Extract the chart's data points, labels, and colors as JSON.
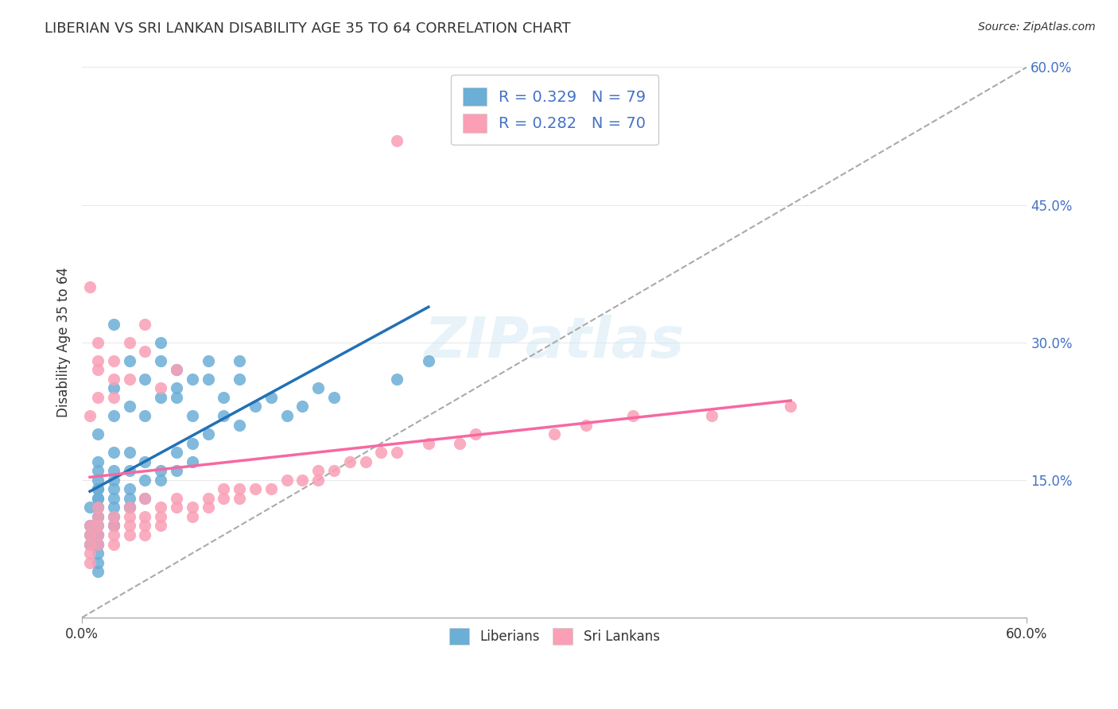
{
  "title": "LIBERIAN VS SRI LANKAN DISABILITY AGE 35 TO 64 CORRELATION CHART",
  "source_text": "Source: ZipAtlas.com",
  "xlabel": "",
  "ylabel": "Disability Age 35 to 64",
  "xmin": 0.0,
  "xmax": 0.6,
  "ymin": 0.0,
  "ymax": 0.6,
  "ytick_labels": [
    "",
    "15.0%",
    "30.0%",
    "45.0%",
    "60.0%"
  ],
  "ytick_values": [
    0.0,
    0.15,
    0.3,
    0.45,
    0.6
  ],
  "xtick_labels": [
    "0.0%",
    "60.0%"
  ],
  "xtick_values": [
    0.0,
    0.6
  ],
  "liberian_R": 0.329,
  "liberian_N": 79,
  "srilankan_R": 0.282,
  "srilankan_N": 70,
  "blue_color": "#6baed6",
  "pink_color": "#fa9fb5",
  "blue_line_color": "#2171b5",
  "pink_line_color": "#f768a1",
  "trend_line_color": "#aaaaaa",
  "background_color": "#ffffff",
  "watermark_text": "ZIPatlas",
  "liberian_x": [
    0.01,
    0.01,
    0.02,
    0.01,
    0.01,
    0.005,
    0.005,
    0.005,
    0.005,
    0.01,
    0.01,
    0.02,
    0.02,
    0.03,
    0.03,
    0.04,
    0.04,
    0.05,
    0.05,
    0.05,
    0.06,
    0.06,
    0.06,
    0.07,
    0.07,
    0.08,
    0.08,
    0.09,
    0.1,
    0.1,
    0.01,
    0.01,
    0.01,
    0.01,
    0.01,
    0.01,
    0.01,
    0.01,
    0.01,
    0.02,
    0.02,
    0.02,
    0.02,
    0.02,
    0.02,
    0.02,
    0.03,
    0.03,
    0.03,
    0.03,
    0.03,
    0.04,
    0.04,
    0.04,
    0.05,
    0.05,
    0.06,
    0.06,
    0.07,
    0.07,
    0.08,
    0.09,
    0.1,
    0.11,
    0.12,
    0.13,
    0.14,
    0.15,
    0.16,
    0.02,
    0.01,
    0.01,
    0.01,
    0.01,
    0.01,
    0.02,
    0.03,
    0.2,
    0.22
  ],
  "liberian_y": [
    0.13,
    0.14,
    0.18,
    0.12,
    0.11,
    0.1,
    0.09,
    0.08,
    0.12,
    0.2,
    0.17,
    0.22,
    0.25,
    0.23,
    0.28,
    0.22,
    0.26,
    0.24,
    0.28,
    0.3,
    0.25,
    0.27,
    0.24,
    0.22,
    0.26,
    0.28,
    0.26,
    0.24,
    0.26,
    0.28,
    0.15,
    0.16,
    0.14,
    0.13,
    0.12,
    0.11,
    0.1,
    0.09,
    0.08,
    0.16,
    0.15,
    0.14,
    0.13,
    0.12,
    0.11,
    0.1,
    0.18,
    0.16,
    0.14,
    0.13,
    0.12,
    0.17,
    0.15,
    0.13,
    0.16,
    0.15,
    0.18,
    0.16,
    0.19,
    0.17,
    0.2,
    0.22,
    0.21,
    0.23,
    0.24,
    0.22,
    0.23,
    0.25,
    0.24,
    0.32,
    0.05,
    0.06,
    0.07,
    0.08,
    0.09,
    0.1,
    0.12,
    0.26,
    0.28
  ],
  "srilankan_x": [
    0.005,
    0.005,
    0.005,
    0.005,
    0.005,
    0.01,
    0.01,
    0.01,
    0.01,
    0.01,
    0.02,
    0.02,
    0.02,
    0.02,
    0.03,
    0.03,
    0.03,
    0.03,
    0.04,
    0.04,
    0.04,
    0.04,
    0.05,
    0.05,
    0.05,
    0.06,
    0.06,
    0.07,
    0.07,
    0.08,
    0.08,
    0.09,
    0.09,
    0.1,
    0.1,
    0.11,
    0.12,
    0.13,
    0.14,
    0.15,
    0.15,
    0.16,
    0.17,
    0.18,
    0.19,
    0.2,
    0.22,
    0.24,
    0.25,
    0.3,
    0.32,
    0.35,
    0.4,
    0.45,
    0.005,
    0.005,
    0.01,
    0.01,
    0.01,
    0.01,
    0.02,
    0.02,
    0.02,
    0.03,
    0.03,
    0.04,
    0.04,
    0.05,
    0.06,
    0.2
  ],
  "srilankan_y": [
    0.09,
    0.1,
    0.08,
    0.07,
    0.06,
    0.11,
    0.1,
    0.09,
    0.08,
    0.12,
    0.1,
    0.11,
    0.09,
    0.08,
    0.1,
    0.11,
    0.12,
    0.09,
    0.11,
    0.1,
    0.09,
    0.13,
    0.12,
    0.11,
    0.1,
    0.13,
    0.12,
    0.12,
    0.11,
    0.13,
    0.12,
    0.14,
    0.13,
    0.14,
    0.13,
    0.14,
    0.14,
    0.15,
    0.15,
    0.15,
    0.16,
    0.16,
    0.17,
    0.17,
    0.18,
    0.18,
    0.19,
    0.19,
    0.2,
    0.2,
    0.21,
    0.22,
    0.22,
    0.23,
    0.36,
    0.22,
    0.3,
    0.24,
    0.28,
    0.27,
    0.26,
    0.24,
    0.28,
    0.26,
    0.3,
    0.29,
    0.32,
    0.25,
    0.27,
    0.52
  ]
}
